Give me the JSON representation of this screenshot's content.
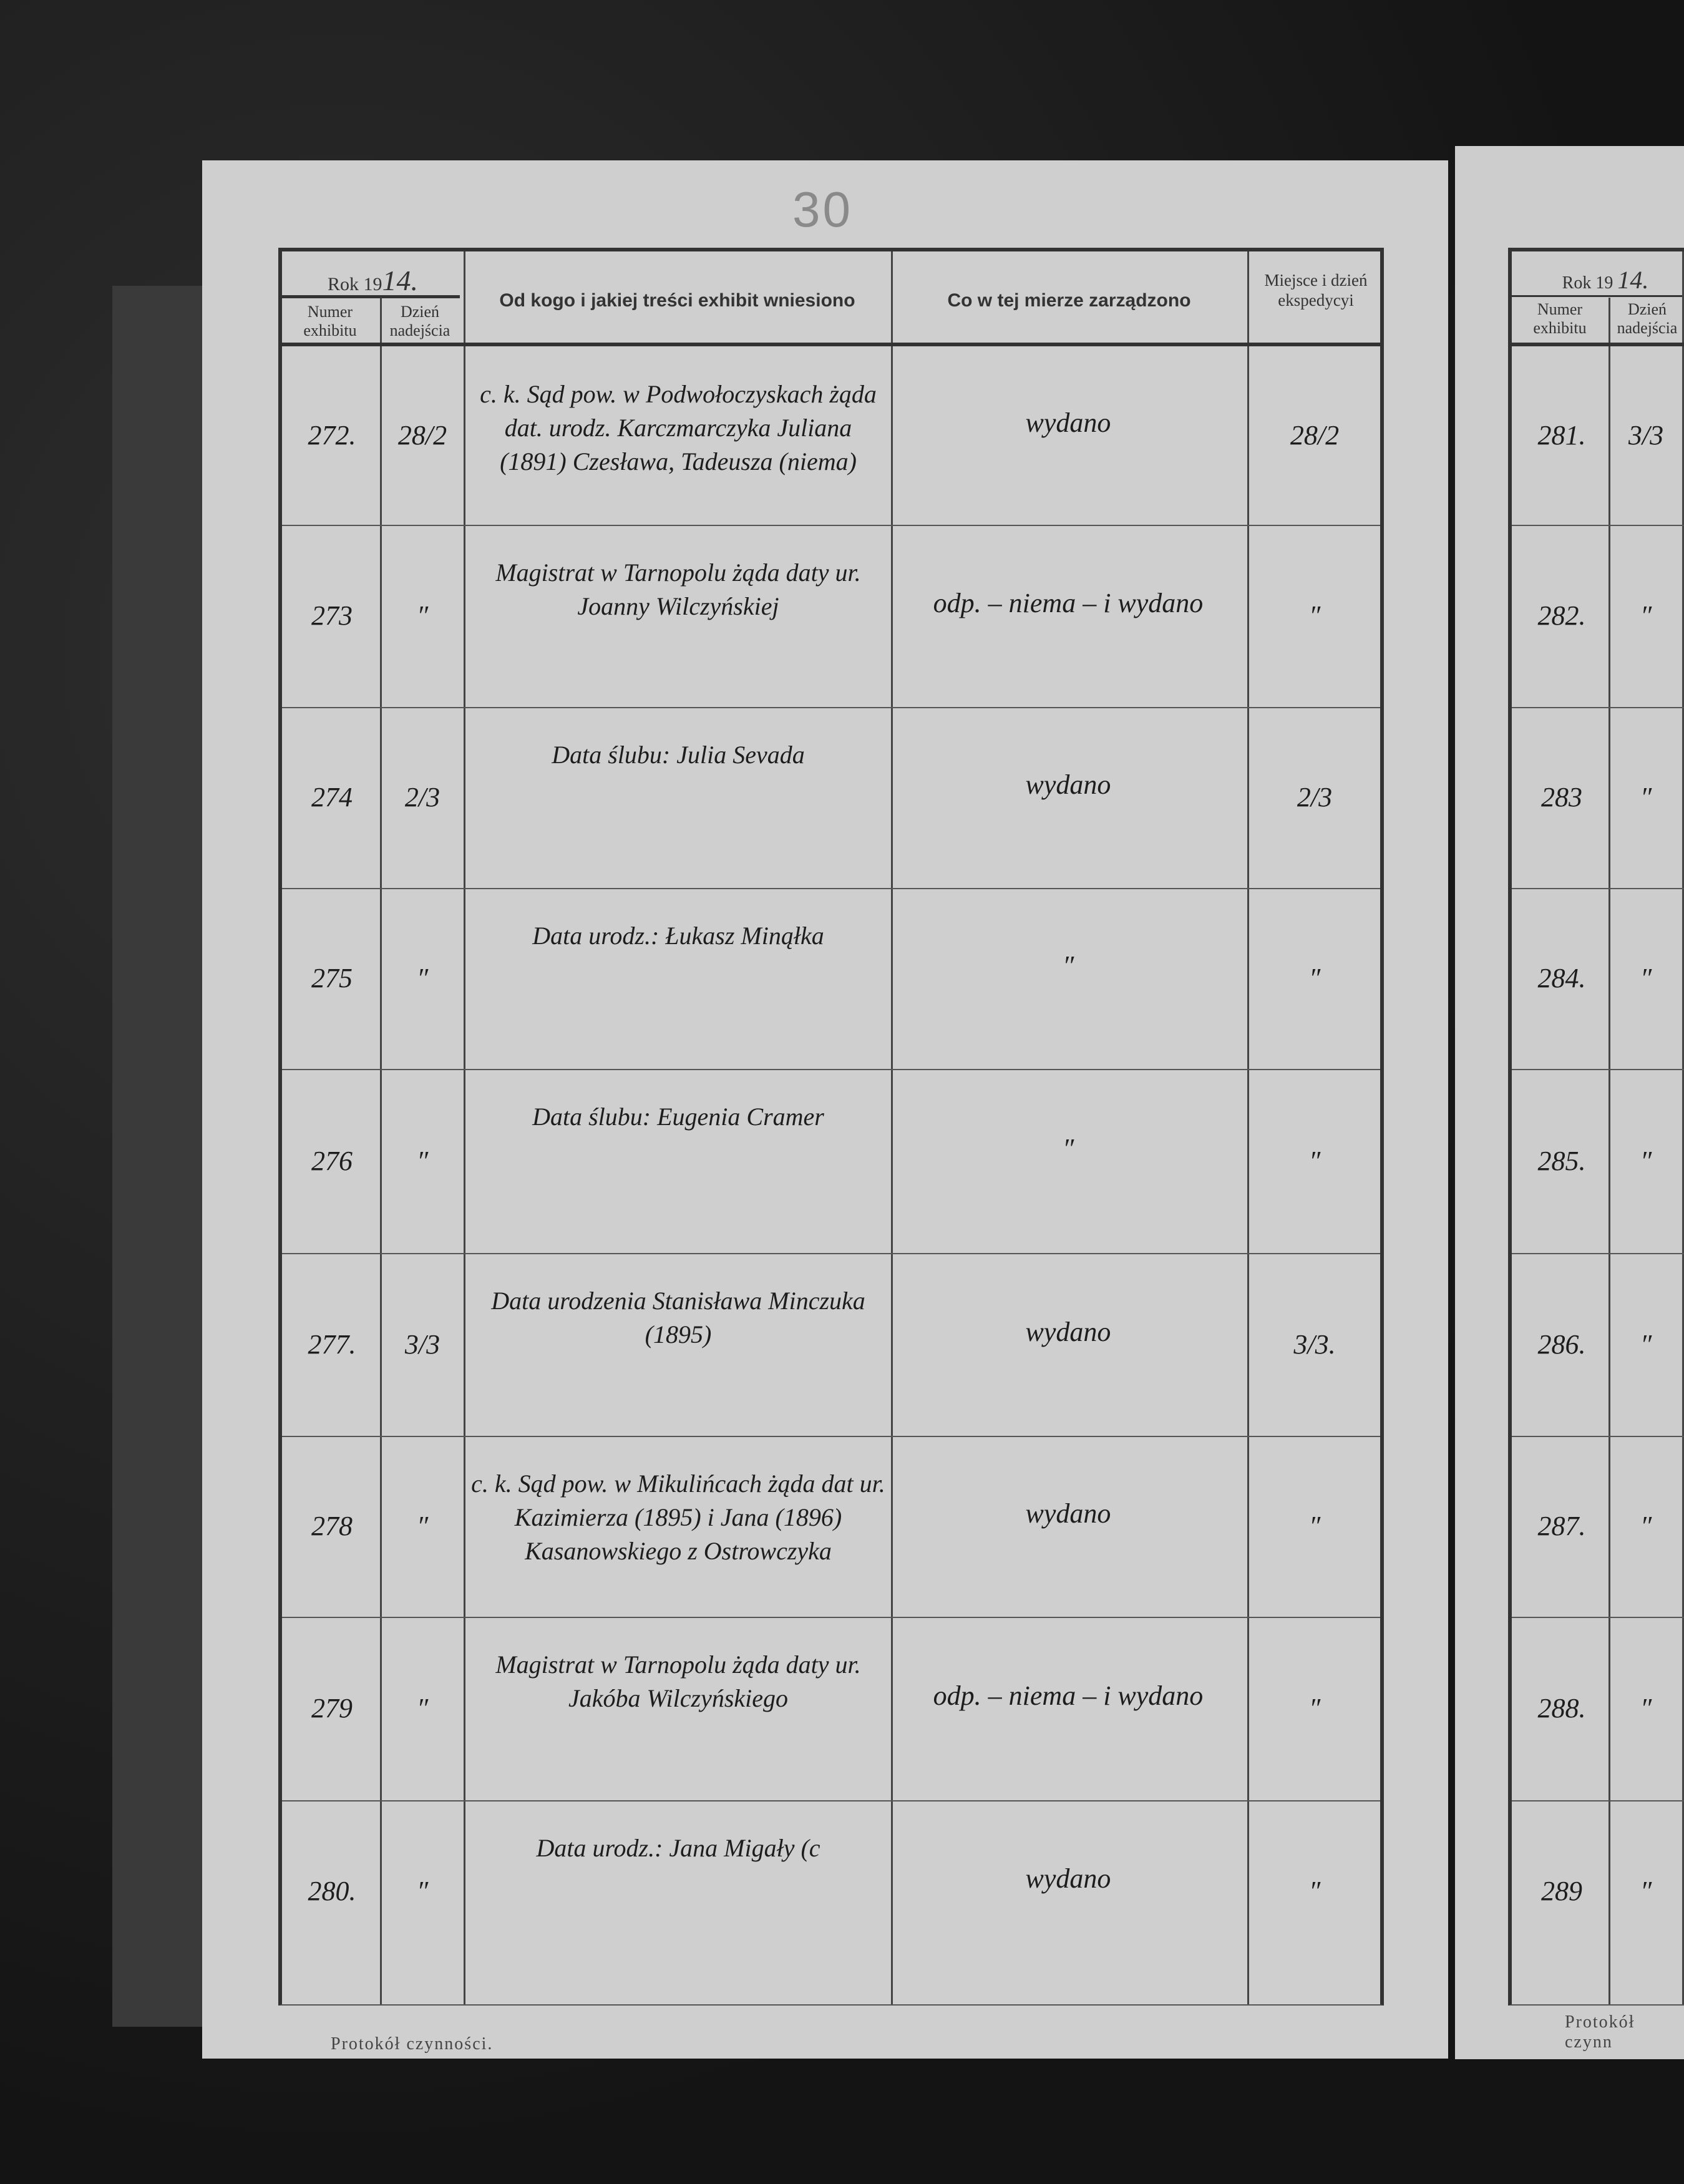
{
  "folio": "30",
  "left_page": {
    "year_label": "Rok 19",
    "year_value": "14.",
    "headers": {
      "numer": "Numer exhibitu",
      "dzien": "Dzień nadejścia",
      "od_kogo": "Od kogo i jakiej treści exhibit wniesiono",
      "co": "Co w tej mierze zarządzono",
      "miejsce": "Miejsce i dzień ekspedycyi"
    },
    "rows": [
      {
        "numer": "272.",
        "dzien": "28/2",
        "tresc": "c. k. Sąd pow. w Podwołoczyskach żąda dat. urodz. Karczmarczyka Juliana (1891) Czesława, Tadeusza (niema)",
        "zarzadzono": "wydano",
        "ekspedycja": "28/2"
      },
      {
        "numer": "273",
        "dzien": "″",
        "tresc": "Magistrat w Tarnopolu żąda daty ur. Joanny Wilczyńskiej",
        "zarzadzono": "odp. – niema – i wydano",
        "ekspedycja": "″"
      },
      {
        "numer": "274",
        "dzien": "2/3",
        "tresc": "Data ślubu: Julia Sevada",
        "zarzadzono": "wydano",
        "ekspedycja": "2/3"
      },
      {
        "numer": "275",
        "dzien": "″",
        "tresc": "Data urodz.: Łukasz Minąłka",
        "zarzadzono": "″",
        "ekspedycja": "″"
      },
      {
        "numer": "276",
        "dzien": "″",
        "tresc": "Data ślubu: Eugenia Cramer",
        "zarzadzono": "″",
        "ekspedycja": "″"
      },
      {
        "numer": "277.",
        "dzien": "3/3",
        "tresc": "Data urodzenia Stanisława Minczuka (1895)",
        "zarzadzono": "wydano",
        "ekspedycja": "3/3."
      },
      {
        "numer": "278",
        "dzien": "″",
        "tresc": "c. k. Sąd pow. w Mikulińcach żąda dat ur. Kazimierza (1895) i Jana (1896) Kasanowskiego z Ostrowczyka",
        "zarzadzono": "wydano",
        "ekspedycja": "″"
      },
      {
        "numer": "279",
        "dzien": "″",
        "tresc": "Magistrat w Tarnopolu żąda daty ur. Jakóba Wilczyńskiego",
        "zarzadzono": "odp. – niema – i wydano",
        "ekspedycja": "″"
      },
      {
        "numer": "280.",
        "dzien": "″",
        "tresc": "Data urodz.: Jana Migały (c",
        "zarzadzono": "wydano",
        "ekspedycja": "″"
      }
    ],
    "footer": "Protokół czynności."
  },
  "right_page": {
    "year_label": "Rok 19",
    "year_value": "14.",
    "headers": {
      "numer": "Numer exhibitu",
      "dzien": "Dzień nadejścia"
    },
    "rows": [
      {
        "numer": "281.",
        "dzien": "3/3"
      },
      {
        "numer": "282.",
        "dzien": "″"
      },
      {
        "numer": "283",
        "dzien": "″"
      },
      {
        "numer": "284.",
        "dzien": "″"
      },
      {
        "numer": "285.",
        "dzien": "″"
      },
      {
        "numer": "286.",
        "dzien": "″"
      },
      {
        "numer": "287.",
        "dzien": "″"
      },
      {
        "numer": "288.",
        "dzien": "″"
      },
      {
        "numer": "289",
        "dzien": "″"
      }
    ],
    "footer": "Protokół czynn"
  }
}
